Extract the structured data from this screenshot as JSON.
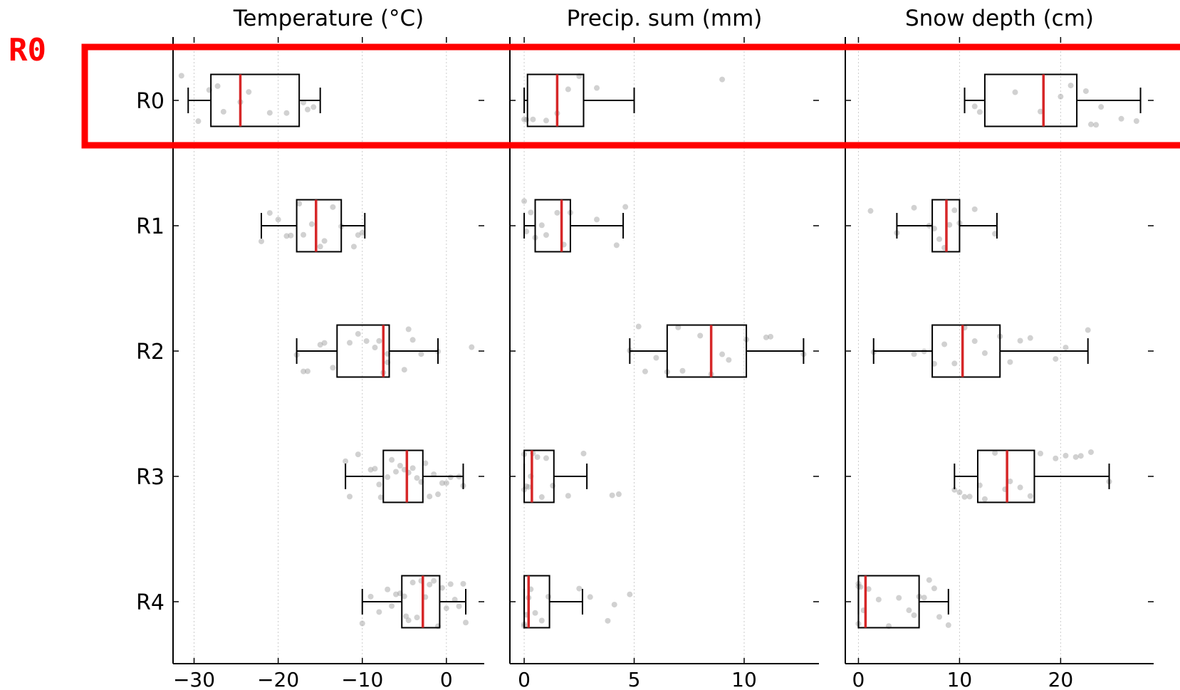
{
  "highlight": {
    "label": "R0",
    "color": "#ff0000"
  },
  "colors": {
    "median": "#d62728",
    "box": "#000000",
    "points": "#999999",
    "grid": "#cccccc"
  },
  "chart_data": [
    {
      "type": "boxplot",
      "orientation": "horizontal",
      "title": "Temperature (°C)",
      "categories": [
        "R0",
        "R1",
        "R2",
        "R3",
        "R4"
      ],
      "xlim": [
        -32.5,
        4.5
      ],
      "xticks": [
        -30,
        -20,
        -10,
        0
      ],
      "xtick_labels": [
        "−30",
        "−20",
        "−10",
        "0"
      ],
      "boxes": [
        {
          "category": "R0",
          "whislo": -30.7,
          "q1": -28.0,
          "med": -24.5,
          "q3": -17.5,
          "whishi": -15.0
        },
        {
          "category": "R1",
          "whislo": -22.0,
          "q1": -17.8,
          "med": -15.5,
          "q3": -12.5,
          "whishi": -9.7
        },
        {
          "category": "R2",
          "whislo": -17.8,
          "q1": -13.0,
          "med": -7.5,
          "q3": -6.8,
          "whishi": -1.0
        },
        {
          "category": "R3",
          "whislo": -12.0,
          "q1": -7.5,
          "med": -4.7,
          "q3": -2.8,
          "whishi": 2.0
        },
        {
          "category": "R4",
          "whislo": -10.0,
          "q1": -5.3,
          "med": -2.8,
          "q3": -0.8,
          "whishi": 2.3
        }
      ],
      "points": [
        {
          "category": "R0",
          "values": [
            -31.5,
            -29.5,
            -28.2,
            -27.2,
            -26.5,
            -24.5,
            -23.5,
            -21.0,
            -19.0,
            -17.0,
            -16.5,
            -15.8
          ]
        },
        {
          "category": "R1",
          "values": [
            -22.0,
            -21.0,
            -20.0,
            -19.0,
            -18.5,
            -17.5,
            -17.0,
            -16.0,
            -15.0,
            -14.5,
            -13.5,
            -12.5,
            -11.0,
            -10.5,
            -10.0
          ]
        },
        {
          "category": "R2",
          "values": [
            -17.8,
            -17.0,
            -16.5,
            -15.0,
            -14.5,
            -13.5,
            -11.5,
            -10.5,
            -9.5,
            -8.5,
            -8.0,
            -7.5,
            -7.0,
            -7.0,
            -5.0,
            -4.5,
            -4.0,
            -3.0,
            -1.0,
            3.0
          ]
        },
        {
          "category": "R3",
          "values": [
            -12.0,
            -11.5,
            -10.5,
            -9.0,
            -8.5,
            -8.0,
            -7.8,
            -7.0,
            -6.5,
            -6.0,
            -5.5,
            -5.0,
            -4.5,
            -4.0,
            -3.5,
            -3.0,
            -2.5,
            -2.0,
            -1.5,
            -1.0,
            -0.5,
            0.0,
            0.5,
            1.5,
            2.0
          ]
        },
        {
          "category": "R4",
          "values": [
            -10.0,
            -9.0,
            -8.0,
            -7.0,
            -6.5,
            -6.0,
            -5.5,
            -5.0,
            -4.8,
            -4.5,
            -4.0,
            -3.5,
            -3.0,
            -2.5,
            -2.0,
            -1.5,
            -1.0,
            -0.5,
            0.0,
            0.5,
            1.0,
            1.5,
            2.0,
            2.3
          ]
        }
      ]
    },
    {
      "type": "boxplot",
      "orientation": "horizontal",
      "title": "Precip. sum (mm)",
      "categories": [
        "R0",
        "R1",
        "R2",
        "R3",
        "R4"
      ],
      "xlim": [
        -0.65,
        13.4
      ],
      "xticks": [
        0,
        5,
        10
      ],
      "xtick_labels": [
        "0",
        "5",
        "10"
      ],
      "boxes": [
        {
          "category": "R0",
          "whislo": 0.0,
          "q1": 0.15,
          "med": 1.5,
          "q3": 2.7,
          "whishi": 5.0
        },
        {
          "category": "R1",
          "whislo": 0.0,
          "q1": 0.5,
          "med": 1.7,
          "q3": 2.1,
          "whishi": 4.5
        },
        {
          "category": "R2",
          "whislo": 4.8,
          "q1": 6.5,
          "med": 8.5,
          "q3": 10.1,
          "whishi": 12.7
        },
        {
          "category": "R3",
          "whislo": 0.0,
          "q1": 0.0,
          "med": 0.35,
          "q3": 1.35,
          "whishi": 2.85
        },
        {
          "category": "R4",
          "whislo": 0.0,
          "q1": 0.0,
          "med": 0.2,
          "q3": 1.15,
          "whishi": 2.65
        }
      ],
      "points": [
        {
          "category": "R0",
          "values": [
            0.0,
            0.1,
            0.4,
            1.0,
            1.5,
            2.0,
            2.5,
            3.3,
            9.0
          ]
        },
        {
          "category": "R1",
          "values": [
            0.0,
            0.1,
            0.3,
            0.5,
            0.8,
            1.0,
            1.5,
            1.8,
            2.1,
            3.3,
            4.2,
            4.6
          ]
        },
        {
          "category": "R2",
          "values": [
            4.8,
            5.2,
            5.5,
            6.0,
            6.5,
            7.0,
            7.2,
            8.0,
            8.5,
            9.0,
            9.3,
            10.1,
            11.0,
            11.2,
            12.7
          ]
        },
        {
          "category": "R3",
          "values": [
            0.0,
            0.0,
            0.1,
            0.2,
            0.3,
            0.4,
            0.6,
            0.8,
            1.0,
            1.3,
            2.0,
            2.7,
            4.0,
            4.3
          ]
        },
        {
          "category": "R4",
          "values": [
            0.0,
            0.0,
            0.1,
            0.2,
            0.3,
            0.5,
            0.8,
            1.1,
            2.5,
            3.0,
            3.8,
            4.1,
            4.8
          ]
        }
      ]
    },
    {
      "type": "boxplot",
      "orientation": "horizontal",
      "title": "Snow depth (cm)",
      "categories": [
        "R0",
        "R1",
        "R2",
        "R3",
        "R4"
      ],
      "xlim": [
        -1.3,
        29.2
      ],
      "xticks": [
        0,
        10,
        20
      ],
      "xtick_labels": [
        "0",
        "10",
        "20"
      ],
      "boxes": [
        {
          "category": "R0",
          "whislo": 10.5,
          "q1": 12.5,
          "med": 18.3,
          "q3": 21.6,
          "whishi": 27.9
        },
        {
          "category": "R1",
          "whislo": 3.8,
          "q1": 7.3,
          "med": 8.7,
          "q3": 10.0,
          "whishi": 13.7
        },
        {
          "category": "R2",
          "whislo": 1.5,
          "q1": 7.3,
          "med": 10.3,
          "q3": 14.0,
          "whishi": 22.7
        },
        {
          "category": "R3",
          "whislo": 9.5,
          "q1": 11.8,
          "med": 14.7,
          "q3": 17.4,
          "whishi": 24.8
        },
        {
          "category": "R4",
          "whislo": 0.0,
          "q1": 0.0,
          "med": 0.7,
          "q3": 6.0,
          "whishi": 8.9
        }
      ],
      "points": [
        {
          "category": "R0",
          "values": [
            11.5,
            12.0,
            15.5,
            18.0,
            20.0,
            21.0,
            22.5,
            23.0,
            23.5,
            24.0,
            26.0,
            27.5
          ]
        },
        {
          "category": "R1",
          "values": [
            1.2,
            3.8,
            5.5,
            7.0,
            7.5,
            8.0,
            8.5,
            9.0,
            9.5,
            10.0,
            11.5,
            13.5
          ]
        },
        {
          "category": "R2",
          "values": [
            1.5,
            5.5,
            6.5,
            7.5,
            8.5,
            9.5,
            10.5,
            11.5,
            12.5,
            14.0,
            15.0,
            16.0,
            17.0,
            19.5,
            20.5,
            22.7
          ]
        },
        {
          "category": "R3",
          "values": [
            9.5,
            10.0,
            10.5,
            11.0,
            12.0,
            12.5,
            13.5,
            14.5,
            15.0,
            16.0,
            17.0,
            18.0,
            19.5,
            20.5,
            21.5,
            22.0,
            23.0,
            24.8
          ]
        },
        {
          "category": "R4",
          "values": [
            0.0,
            0.0,
            0.0,
            0.2,
            0.5,
            1.0,
            2.0,
            3.0,
            4.0,
            5.0,
            5.5,
            6.0,
            6.5,
            7.0,
            7.5,
            8.0,
            8.9
          ]
        }
      ]
    }
  ]
}
